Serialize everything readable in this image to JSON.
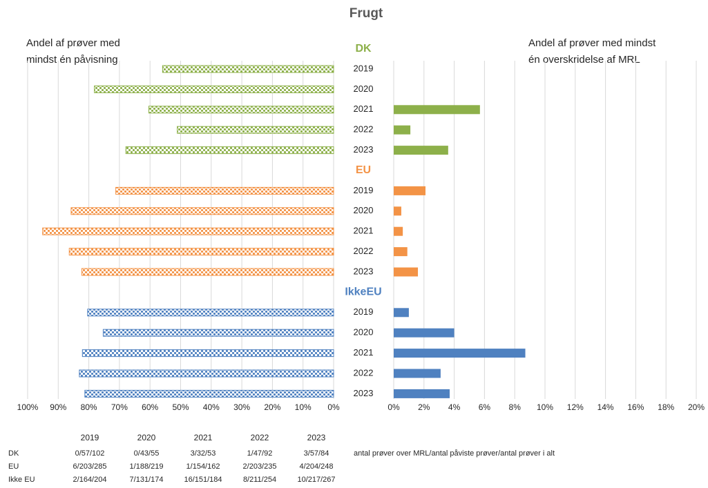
{
  "chart_data": {
    "type": "bar",
    "title": "Frugt",
    "left_axis_label": [
      "Andel af prøver med",
      "mindst én påvisning"
    ],
    "right_axis_label": [
      "Andel af prøver med mindst",
      "én overskridelse af MRL"
    ],
    "groups": [
      {
        "name": "DK",
        "color": "#8db04a",
        "categories": [
          "2019",
          "2020",
          "2021",
          "2022",
          "2023"
        ],
        "left_values": [
          55.9,
          78.2,
          60.4,
          51.1,
          67.9
        ],
        "right_values": [
          0,
          0,
          5.7,
          1.1,
          3.6
        ]
      },
      {
        "name": "EU",
        "color": "#f39346",
        "categories": [
          "2019",
          "2020",
          "2021",
          "2022",
          "2023"
        ],
        "left_values": [
          71.2,
          85.8,
          95.1,
          86.4,
          82.3
        ],
        "right_values": [
          2.1,
          0.5,
          0.6,
          0.9,
          1.6
        ]
      },
      {
        "name": "IkkeEU",
        "color": "#4f81c0",
        "categories": [
          "2019",
          "2020",
          "2021",
          "2022",
          "2023"
        ],
        "left_values": [
          80.4,
          75.3,
          82.1,
          83.1,
          81.3
        ],
        "right_values": [
          1.0,
          4.0,
          8.7,
          3.1,
          3.7
        ]
      }
    ],
    "left_xlim": [
      0,
      100
    ],
    "left_xticks": [
      {
        "value": 100,
        "label": "100%"
      },
      {
        "value": 90,
        "label": "90%"
      },
      {
        "value": 80,
        "label": "80%"
      },
      {
        "value": 70,
        "label": "70%"
      },
      {
        "value": 60,
        "label": "60%"
      },
      {
        "value": 50,
        "label": "50%"
      },
      {
        "value": 40,
        "label": "40%"
      },
      {
        "value": 30,
        "label": "30%"
      },
      {
        "value": 20,
        "label": "20%"
      },
      {
        "value": 10,
        "label": "10%"
      },
      {
        "value": 0,
        "label": "0%"
      }
    ],
    "right_xlim": [
      0,
      20
    ],
    "right_xticks": [
      {
        "value": 0,
        "label": "0%"
      },
      {
        "value": 2,
        "label": "2%"
      },
      {
        "value": 4,
        "label": "4%"
      },
      {
        "value": 6,
        "label": "6%"
      },
      {
        "value": 8,
        "label": "8%"
      },
      {
        "value": 10,
        "label": "10%"
      },
      {
        "value": 12,
        "label": "12%"
      },
      {
        "value": 14,
        "label": "14%"
      },
      {
        "value": 16,
        "label": "16%"
      },
      {
        "value": 18,
        "label": "18%"
      },
      {
        "value": 20,
        "label": "20%"
      }
    ],
    "grid": true
  },
  "table": {
    "columns": [
      "2019",
      "2020",
      "2021",
      "2022",
      "2023"
    ],
    "rows": [
      {
        "label": "DK",
        "cells": [
          "0/57/102",
          "0/43/55",
          "3/32/53",
          "1/47/92",
          "3/57/84"
        ]
      },
      {
        "label": "EU",
        "cells": [
          "6/203/285",
          "1/188/219",
          "1/154/162",
          "2/203/235",
          "4/204/248"
        ]
      },
      {
        "label": "Ikke EU",
        "cells": [
          "2/164/204",
          "7/131/174",
          "16/151/184",
          "8/211/254",
          "10/217/267"
        ]
      }
    ],
    "note": "antal prøver over MRL/antal påviste prøver/antal prøver i alt"
  }
}
